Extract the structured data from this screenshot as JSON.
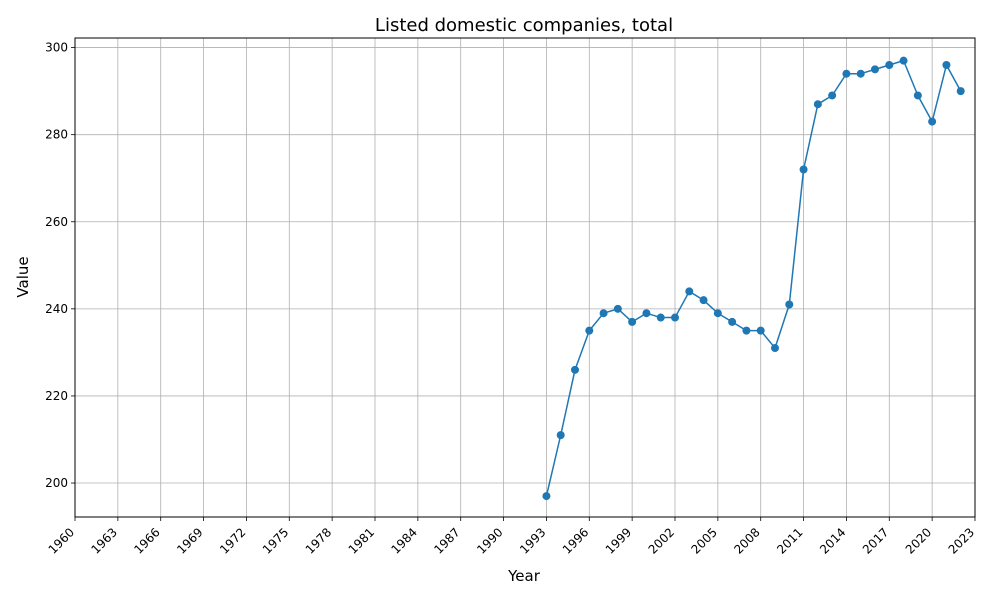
{
  "chart_data": {
    "type": "line",
    "title": "Listed domestic companies, total",
    "xlabel": "Year",
    "ylabel": "Value",
    "xlim": [
      1960,
      2023
    ],
    "ylim": [
      192.2,
      302.2
    ],
    "x_ticks": [
      "1960",
      "1963",
      "1966",
      "1969",
      "1972",
      "1975",
      "1978",
      "1981",
      "1984",
      "1987",
      "1990",
      "1993",
      "1996",
      "1999",
      "2002",
      "2005",
      "2008",
      "2011",
      "2014",
      "2017",
      "2020",
      "2023"
    ],
    "y_ticks": [
      "200",
      "220",
      "240",
      "260",
      "280",
      "300"
    ],
    "grid": true,
    "line_color": "#1f77b4",
    "marker": "circle",
    "series": [
      {
        "x": [
          1993,
          1994,
          1995,
          1996,
          1997,
          1998,
          1999,
          2000,
          2001,
          2002,
          2003,
          2004,
          2005,
          2006,
          2007,
          2008,
          2009,
          2010,
          2011,
          2012,
          2013,
          2014,
          2015,
          2016,
          2017,
          2018,
          2019,
          2020,
          2021,
          2022
        ],
        "values": [
          197,
          211,
          226,
          235,
          239,
          240,
          237,
          239,
          238,
          238,
          244,
          242,
          239,
          237,
          235,
          235,
          231,
          241,
          272,
          287,
          289,
          294,
          294,
          295,
          296,
          297,
          289,
          283,
          296,
          290
        ]
      }
    ]
  }
}
